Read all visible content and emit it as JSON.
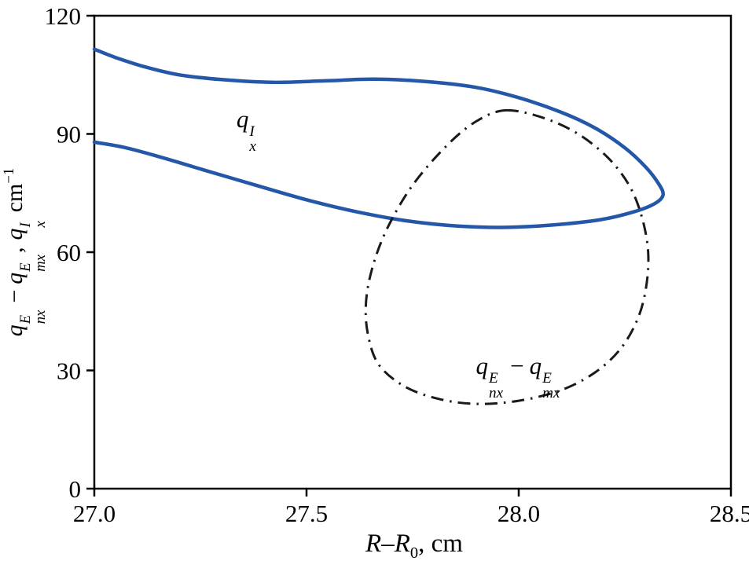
{
  "figure": {
    "background": "#ffffff",
    "frame_color": "#000000",
    "accent_blue": "#2457a8"
  },
  "labels": {
    "curve1": {
      "base": "q",
      "sup": "I",
      "sub": "x"
    },
    "curve2": {
      "q1": "q",
      "q1sup": "E",
      "q1sub": "nx",
      "minus": "−",
      "q2": "q",
      "q2sup": "E",
      "q2sub": "mx"
    },
    "ylabel": {
      "q1": "q",
      "q1sup": "E",
      "q1sub": "nx",
      "minus": "−",
      "q2": "q",
      "q2sup": "E",
      "q2sub": "mx",
      "comma": ",",
      "q3": "q",
      "q3sup": "I",
      "q3sub": "x",
      "unit": "cm",
      "unitsup": "−1"
    },
    "xlabel": {
      "r1": "R",
      "dash": "–",
      "r2": "R",
      "sub": "0",
      "rest": ", cm"
    }
  },
  "chart_data": {
    "type": "line",
    "title": "",
    "xlabel": "R–R0, cm",
    "ylabel": "qnx^E − qmx^E, qx^I cm^−1",
    "xlim": [
      27.0,
      28.5
    ],
    "ylim": [
      0,
      120
    ],
    "x_ticks": [
      27.0,
      27.5,
      28.0,
      28.5
    ],
    "x_tick_labels": [
      "27.0",
      "27.5",
      "28.0",
      "28.5"
    ],
    "y_ticks": [
      0,
      30,
      60,
      90,
      120
    ],
    "y_tick_labels": [
      "0",
      "30",
      "60",
      "90",
      "120"
    ],
    "grid": false,
    "legend": "inline-annotations",
    "series": [
      {
        "id": "qxI",
        "name": "qx^I",
        "color": "#2457a8",
        "style": "solid",
        "width": 4.5,
        "closed": false,
        "points": [
          [
            27.0,
            111.5
          ],
          [
            27.05,
            109.4
          ],
          [
            27.12,
            107.0
          ],
          [
            27.2,
            105.0
          ],
          [
            27.3,
            103.8
          ],
          [
            27.42,
            103.1
          ],
          [
            27.55,
            103.5
          ],
          [
            27.66,
            103.9
          ],
          [
            27.78,
            103.3
          ],
          [
            27.9,
            101.8
          ],
          [
            28.0,
            99.2
          ],
          [
            28.1,
            95.5
          ],
          [
            28.18,
            91.5
          ],
          [
            28.25,
            86.5
          ],
          [
            28.3,
            81.5
          ],
          [
            28.33,
            77.3
          ],
          [
            28.34,
            74.5
          ],
          [
            28.32,
            72.3
          ],
          [
            28.27,
            70.2
          ],
          [
            28.19,
            68.2
          ],
          [
            28.08,
            66.9
          ],
          [
            27.97,
            66.3
          ],
          [
            27.86,
            66.6
          ],
          [
            27.74,
            67.9
          ],
          [
            27.62,
            70.2
          ],
          [
            27.5,
            73.3
          ],
          [
            27.38,
            77.0
          ],
          [
            27.26,
            80.8
          ],
          [
            27.15,
            84.3
          ],
          [
            27.07,
            86.6
          ],
          [
            27.0,
            87.9
          ]
        ]
      },
      {
        "id": "qnxE-minus-qmxE",
        "name": "qnx^E − qmx^E",
        "color": "#1a1a1a",
        "style": "dashdot",
        "width": 3,
        "closed": true,
        "points": [
          [
            27.97,
            96.0
          ],
          [
            28.06,
            94.0
          ],
          [
            28.14,
            90.0
          ],
          [
            28.21,
            84.0
          ],
          [
            28.26,
            77.0
          ],
          [
            28.29,
            69.0
          ],
          [
            28.305,
            60.0
          ],
          [
            28.3,
            51.0
          ],
          [
            28.28,
            43.0
          ],
          [
            28.24,
            35.5
          ],
          [
            28.18,
            29.5
          ],
          [
            28.1,
            25.0
          ],
          [
            28.0,
            22.3
          ],
          [
            27.9,
            21.5
          ],
          [
            27.81,
            22.8
          ],
          [
            27.73,
            26.0
          ],
          [
            27.67,
            31.5
          ],
          [
            27.645,
            39.0
          ],
          [
            27.64,
            47.0
          ],
          [
            27.655,
            56.0
          ],
          [
            27.69,
            66.0
          ],
          [
            27.75,
            77.0
          ],
          [
            27.83,
            87.0
          ],
          [
            27.9,
            93.2
          ]
        ]
      }
    ],
    "annotations": [
      {
        "id": "qxI-label",
        "text": "qx^I",
        "x": 27.36,
        "y": 91.0
      },
      {
        "id": "qnxE-minus-qmxE-label",
        "text": "qnx^E − qmx^E",
        "x": 28.0,
        "y": 28.5
      }
    ]
  }
}
